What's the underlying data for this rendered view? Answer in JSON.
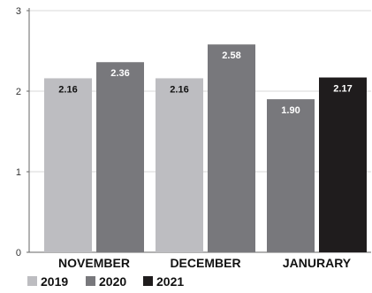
{
  "chart_data": {
    "type": "bar",
    "title": "",
    "xlabel": "",
    "ylabel": "",
    "categories": [
      "NOVEMBER",
      "DECEMBER",
      "JANURARY"
    ],
    "series": [
      {
        "name": "2019",
        "color": "#bdbdc1",
        "label_color": "#111111",
        "values": [
          2.16,
          2.16,
          null
        ],
        "labels": [
          "2.16",
          "2.16",
          ""
        ]
      },
      {
        "name": "2020",
        "color": "#78787c",
        "label_color": "#ffffff",
        "values": [
          2.36,
          2.58,
          1.9
        ],
        "labels": [
          "2.36",
          "2.58",
          "1.90"
        ]
      },
      {
        "name": "2021",
        "color": "#1f1c1d",
        "label_color": "#ffffff",
        "values": [
          null,
          null,
          2.17
        ],
        "labels": [
          "",
          "",
          "2.17"
        ]
      }
    ],
    "ylim": [
      0,
      3
    ],
    "yticks": [
      0,
      1,
      2,
      3
    ],
    "ytick_labels": [
      "0",
      "1",
      "2",
      "3"
    ],
    "grid": true,
    "legend_position": "bottom-left"
  }
}
